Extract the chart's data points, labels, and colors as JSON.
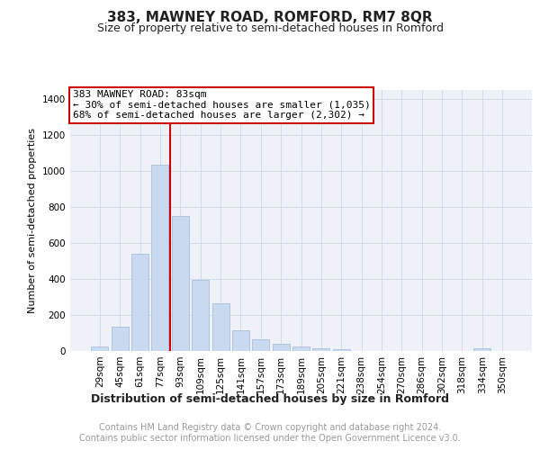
{
  "title": "383, MAWNEY ROAD, ROMFORD, RM7 8QR",
  "subtitle": "Size of property relative to semi-detached houses in Romford",
  "xlabel": "Distribution of semi-detached houses by size in Romford",
  "ylabel": "Number of semi-detached properties",
  "bins": [
    "29sqm",
    "45sqm",
    "61sqm",
    "77sqm",
    "93sqm",
    "109sqm",
    "125sqm",
    "141sqm",
    "157sqm",
    "173sqm",
    "189sqm",
    "205sqm",
    "221sqm",
    "238sqm",
    "254sqm",
    "270sqm",
    "286sqm",
    "302sqm",
    "318sqm",
    "334sqm",
    "350sqm"
  ],
  "values": [
    25,
    135,
    540,
    1035,
    750,
    395,
    265,
    115,
    65,
    40,
    25,
    15,
    10,
    0,
    0,
    0,
    0,
    0,
    0,
    15,
    0
  ],
  "bar_color": "#c9d9f0",
  "bar_edge_color": "#a0b8d8",
  "annotation_text_line1": "383 MAWNEY ROAD: 83sqm",
  "annotation_text_line2": "← 30% of semi-detached houses are smaller (1,035)",
  "annotation_text_line3": "68% of semi-detached houses are larger (2,302) →",
  "annotation_box_color": "#ffffff",
  "annotation_box_edge_color": "#cc0000",
  "red_line_color": "#cc0000",
  "grid_color": "#d0dce8",
  "background_color": "#eef2f8",
  "yticks": [
    0,
    200,
    400,
    600,
    800,
    1000,
    1200,
    1400
  ],
  "ylim": [
    0,
    1450
  ],
  "footer_line1": "Contains HM Land Registry data © Crown copyright and database right 2024.",
  "footer_line2": "Contains public sector information licensed under the Open Government Licence v3.0.",
  "title_fontsize": 11,
  "subtitle_fontsize": 9,
  "ylabel_fontsize": 8,
  "xlabel_fontsize": 9,
  "tick_fontsize": 7.5,
  "footer_fontsize": 7,
  "annot_fontsize": 8
}
